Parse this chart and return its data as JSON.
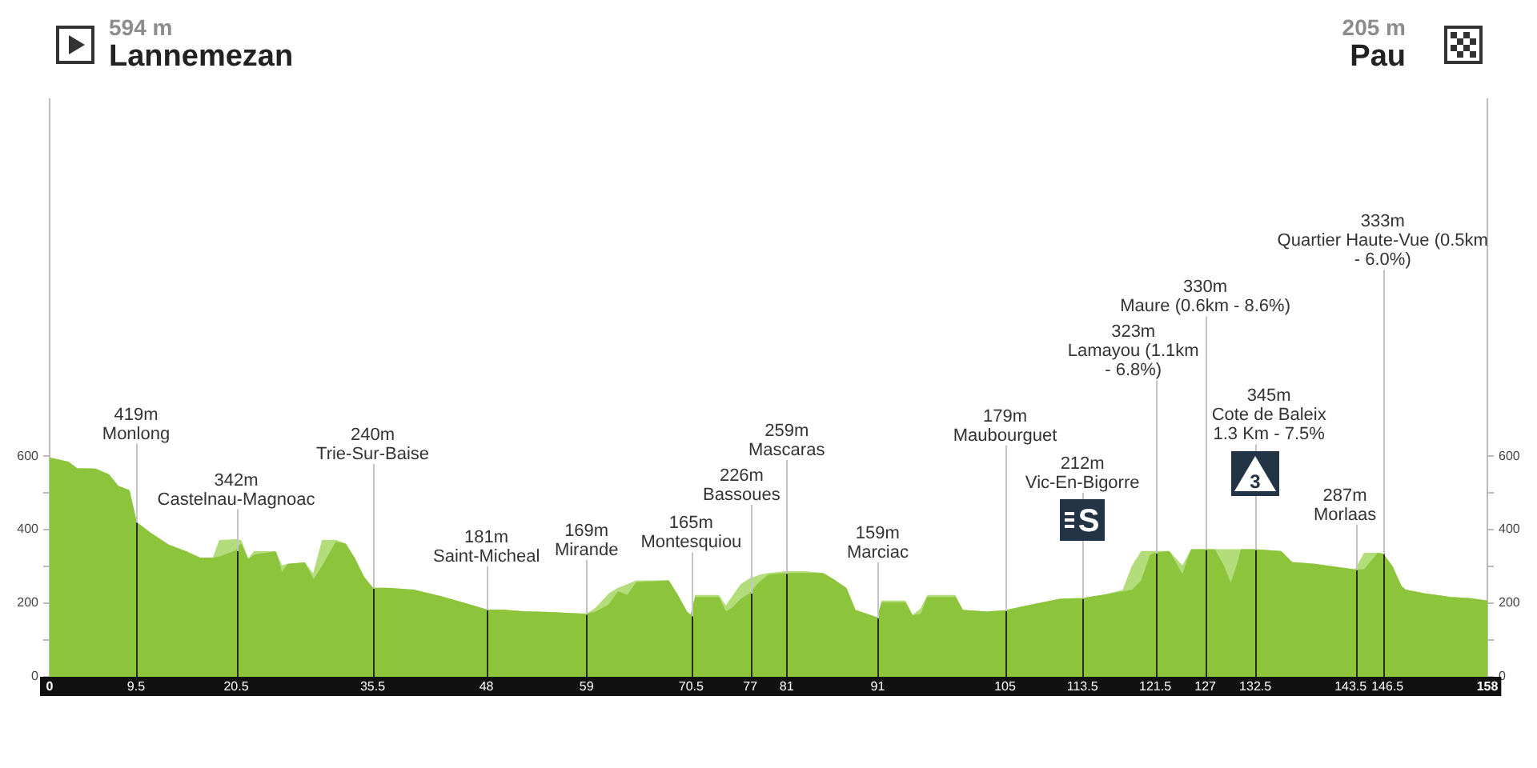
{
  "chart_data": {
    "type": "area",
    "stacked": true,
    "annotations": [
      "594 m\nLannemezan",
      "205 m\nPau",
      {
        "text": "S",
        "x": 113.5,
        "y": 212
      },
      {
        "text": "3",
        "x": 132.5,
        "y": 345
      }
    ],
    "x": [
      0,
      2,
      3,
      5,
      6.5,
      7.5,
      8.7,
      9.5,
      11,
      13,
      15,
      16.5,
      18,
      18.7,
      20.5,
      21,
      21.8,
      22.5,
      24.8,
      25.5,
      26.2,
      28,
      29,
      30,
      31.5,
      32.5,
      33.5,
      34.5,
      35.5,
      37,
      40,
      43,
      46,
      48,
      50,
      52,
      55,
      59,
      60,
      61.5,
      62.5,
      63.5,
      64.5,
      68,
      69,
      70,
      70.5,
      71,
      73.5,
      74.3,
      75,
      76,
      77,
      78,
      79,
      81,
      83,
      85,
      86,
      87.5,
      88.5,
      91,
      91.5,
      94,
      94.8,
      95.8,
      96.5,
      99.5,
      100.3,
      103,
      105,
      108,
      111,
      113.5,
      116,
      118,
      119,
      120,
      121,
      121.5,
      123,
      124.5,
      125.5,
      127,
      128,
      129,
      129.8,
      130.5,
      131,
      132.5,
      134,
      135.3,
      136.5,
      139,
      142,
      143.5,
      144.5,
      146,
      146.5,
      147.5,
      148.5,
      149,
      151,
      154,
      156,
      158
    ],
    "series": [
      {
        "color": "#8cc43c",
        "values": [
          594,
          583,
          565,
          564,
          548,
          517,
          506,
          419,
          391,
          358,
          339,
          322,
          322,
          325,
          342,
          360,
          317,
          330,
          339,
          280,
          305,
          309,
          261,
          300,
          365,
          360,
          320,
          270,
          240,
          240,
          235,
          217,
          196,
          181,
          180,
          176,
          174,
          169,
          175,
          195,
          230,
          220,
          255,
          260,
          220,
          175,
          165,
          215,
          215,
          175,
          185,
          210,
          226,
          255,
          275,
          280,
          280,
          280,
          265,
          240,
          180,
          159,
          200,
          200,
          165,
          170,
          215,
          215,
          180,
          175,
          179,
          195,
          210,
          212,
          222,
          230,
          235,
          260,
          330,
          335,
          340,
          274,
          345,
          345,
          345,
          300,
          250,
          300,
          345,
          345,
          342,
          340,
          310,
          305,
          295,
          290,
          290,
          335,
          333,
          300,
          245,
          235,
          225,
          215,
          212,
          205
        ]
      },
      {
        "color": "#b3dc7a",
        "values": [
          0,
          0,
          0,
          0,
          0,
          0,
          0,
          0,
          0,
          0,
          0,
          0,
          0,
          45,
          30,
          10,
          0,
          10,
          0,
          20,
          0,
          0,
          15,
          70,
          5,
          0,
          0,
          0,
          0,
          0,
          0,
          0,
          0,
          0,
          0,
          0,
          0,
          0,
          10,
          30,
          10,
          30,
          5,
          0,
          0,
          0,
          0,
          5,
          5,
          15,
          30,
          40,
          40,
          20,
          5,
          5,
          5,
          0,
          0,
          0,
          0,
          0,
          5,
          5,
          0,
          15,
          5,
          5,
          0,
          0,
          0,
          0,
          0,
          0,
          0,
          5,
          65,
          80,
          10,
          5,
          0,
          25,
          0,
          0,
          0,
          45,
          95,
          45,
          0,
          0,
          0,
          0,
          0,
          0,
          0,
          0,
          45,
          0,
          0,
          0,
          0,
          0,
          0,
          0,
          0,
          0
        ]
      }
    ],
    "xlim": [
      0,
      158
    ],
    "xticks": [
      0,
      9.5,
      20.5,
      35.5,
      48,
      59,
      70.5,
      77,
      81,
      91,
      105,
      113.5,
      121.5,
      127,
      132.5,
      143.5,
      146.5,
      158
    ],
    "ylim": [
      -26,
      1570
    ],
    "yticks": [
      0,
      {
        "value": 100,
        "label": null
      },
      200,
      {
        "value": 300,
        "label": null
      },
      400,
      {
        "value": 500,
        "label": null
      },
      600
    ],
    "y2lim": [
      -26,
      1570
    ],
    "y2ticks": [
      0,
      {
        "value": 100,
        "label": null
      },
      200,
      {
        "value": 300,
        "label": null
      },
      400,
      {
        "value": 500,
        "label": null
      },
      600
    ],
    "ref_lines": [
      {
        "axis": "x",
        "value": 9.5,
        "label": "419m\nMonlong"
      },
      {
        "axis": "x",
        "value": 20.5,
        "label": "342m\nCastelnau-Magnoac"
      },
      {
        "axis": "x",
        "value": 35.5,
        "label": "240m\nTrie-Sur-Baise"
      },
      {
        "axis": "x",
        "value": 48,
        "label": "181m\nSaint-Micheal"
      },
      {
        "axis": "x",
        "value": 59,
        "label": "169m\nMirande"
      },
      {
        "axis": "x",
        "value": 70.5,
        "label": "165m\nMontesquiou"
      },
      {
        "axis": "x",
        "value": 77,
        "label": "226m\nBassoues"
      },
      {
        "axis": "x",
        "value": 81,
        "label": "259m\nMascaras"
      },
      {
        "axis": "x",
        "value": 91,
        "label": "159m\nMarciac"
      },
      {
        "axis": "x",
        "value": 105,
        "label": "179m\nMaubourguet"
      },
      {
        "axis": "x",
        "value": 113.5,
        "label": "212m\nVic-En-Bigorre"
      },
      {
        "axis": "x",
        "value": 121.5,
        "label": "323m\nLamayou (1.1km\n- 6.8%)"
      },
      {
        "axis": "x",
        "value": 127,
        "label": "330m\nMaure (0.6km - 8.6%)"
      },
      {
        "axis": "x",
        "value": 132.5,
        "label": "345m\nCote de Baleix\n1.3 Km - 7.5%"
      },
      {
        "axis": "x",
        "value": 143.5,
        "label": "287m\nMorlaas"
      },
      {
        "axis": "x",
        "value": 146.5,
        "label": "333m\nQuartier Haute-Vue (0.5km\n- 6.0%)"
      }
    ]
  }
}
